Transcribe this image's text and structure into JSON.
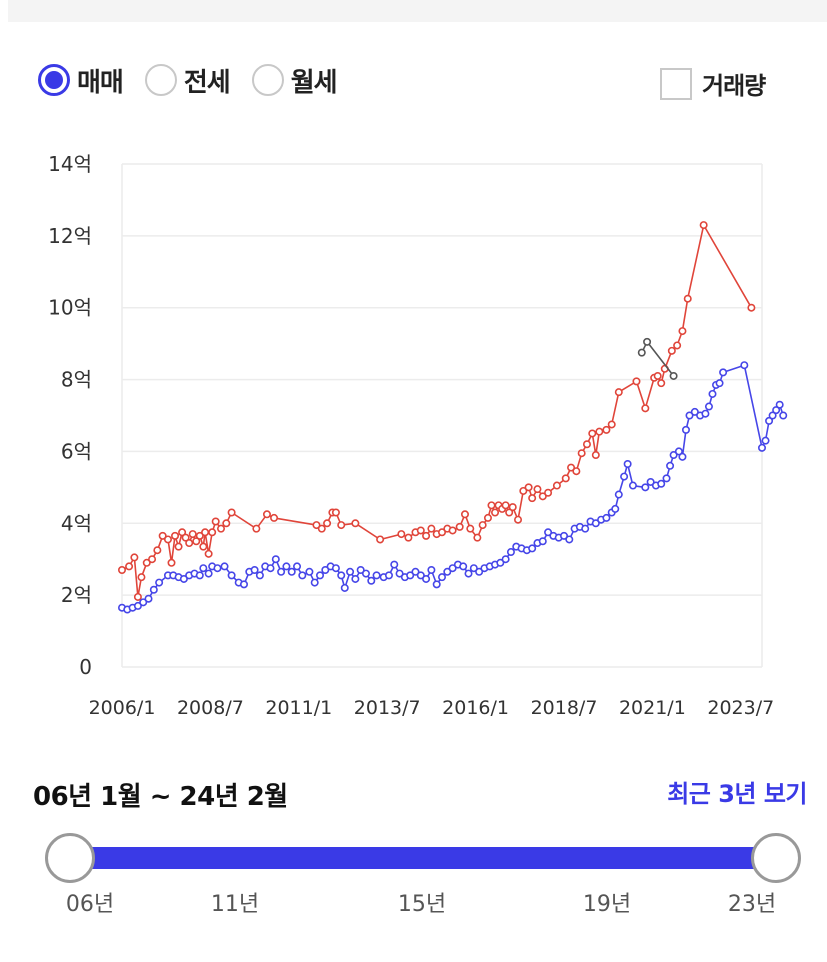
{
  "tabs": {
    "options": [
      {
        "label": "매매",
        "selected": true
      },
      {
        "label": "전세",
        "selected": false
      },
      {
        "label": "월세",
        "selected": false
      }
    ],
    "volume_label": "거래량",
    "volume_checked": false
  },
  "range": {
    "text": "06년 1월 ~ 24년 2월",
    "recent_label": "최근 3년 보기",
    "slider_ticks": [
      "06년",
      "11년",
      "15년",
      "19년",
      "23년"
    ],
    "start_fraction": 0.0,
    "end_fraction": 1.0
  },
  "colors": {
    "accent": "#3a3ae6",
    "red": "#e0453a",
    "blue": "#4646e8",
    "gray": "#555555"
  },
  "chart_data": {
    "type": "line",
    "xlim": [
      2006.0,
      2024.1
    ],
    "ylim": [
      0,
      14
    ],
    "yticks": [
      0,
      2,
      4,
      6,
      8,
      10,
      12,
      14
    ],
    "ytick_labels": [
      "0",
      "2억",
      "4억",
      "6억",
      "8억",
      "10억",
      "12억",
      "14억"
    ],
    "xticks": [
      2006.0,
      2008.5,
      2011.0,
      2013.5,
      2016.0,
      2018.5,
      2021.0,
      2023.5
    ],
    "xtick_labels": [
      "2006/1",
      "2008/7",
      "2011/1",
      "2013/7",
      "2016/1",
      "2018/7",
      "2021/1",
      "2023/7"
    ],
    "grid": true,
    "series": [
      {
        "color": "#e0453a",
        "points": [
          [
            2006.0,
            2.7
          ],
          [
            2006.2,
            2.8
          ],
          [
            2006.35,
            3.05
          ],
          [
            2006.45,
            1.95
          ],
          [
            2006.55,
            2.5
          ],
          [
            2006.7,
            2.9
          ],
          [
            2006.85,
            3.0
          ],
          [
            2007.0,
            3.25
          ],
          [
            2007.15,
            3.65
          ],
          [
            2007.3,
            3.55
          ],
          [
            2007.4,
            2.9
          ],
          [
            2007.5,
            3.65
          ],
          [
            2007.6,
            3.35
          ],
          [
            2007.7,
            3.75
          ],
          [
            2007.8,
            3.6
          ],
          [
            2007.9,
            3.45
          ],
          [
            2008.0,
            3.7
          ],
          [
            2008.1,
            3.5
          ],
          [
            2008.2,
            3.65
          ],
          [
            2008.3,
            3.35
          ],
          [
            2008.35,
            3.75
          ],
          [
            2008.45,
            3.15
          ],
          [
            2008.55,
            3.75
          ],
          [
            2008.65,
            4.05
          ],
          [
            2008.8,
            3.85
          ],
          [
            2008.95,
            4.0
          ],
          [
            2009.1,
            4.3
          ],
          [
            2009.8,
            3.85
          ],
          [
            2010.1,
            4.25
          ],
          [
            2010.3,
            4.15
          ],
          [
            2011.5,
            3.95
          ],
          [
            2011.65,
            3.85
          ],
          [
            2011.8,
            4.0
          ],
          [
            2011.95,
            4.3
          ],
          [
            2012.05,
            4.3
          ],
          [
            2012.2,
            3.95
          ],
          [
            2012.6,
            4.0
          ],
          [
            2013.3,
            3.55
          ],
          [
            2013.9,
            3.7
          ],
          [
            2014.1,
            3.6
          ],
          [
            2014.3,
            3.75
          ],
          [
            2014.45,
            3.8
          ],
          [
            2014.6,
            3.65
          ],
          [
            2014.75,
            3.85
          ],
          [
            2014.9,
            3.7
          ],
          [
            2015.05,
            3.75
          ],
          [
            2015.2,
            3.85
          ],
          [
            2015.35,
            3.8
          ],
          [
            2015.55,
            3.9
          ],
          [
            2015.7,
            4.25
          ],
          [
            2015.85,
            3.85
          ],
          [
            2016.05,
            3.6
          ],
          [
            2016.2,
            3.95
          ],
          [
            2016.35,
            4.15
          ],
          [
            2016.45,
            4.5
          ],
          [
            2016.55,
            4.3
          ],
          [
            2016.65,
            4.5
          ],
          [
            2016.75,
            4.4
          ],
          [
            2016.85,
            4.5
          ],
          [
            2016.95,
            4.3
          ],
          [
            2017.05,
            4.45
          ],
          [
            2017.2,
            4.1
          ],
          [
            2017.35,
            4.9
          ],
          [
            2017.5,
            5.0
          ],
          [
            2017.6,
            4.7
          ],
          [
            2017.75,
            4.95
          ],
          [
            2017.9,
            4.75
          ],
          [
            2018.05,
            4.85
          ],
          [
            2018.3,
            5.05
          ],
          [
            2018.55,
            5.25
          ],
          [
            2018.7,
            5.55
          ],
          [
            2018.85,
            5.45
          ],
          [
            2019.0,
            5.95
          ],
          [
            2019.15,
            6.2
          ],
          [
            2019.3,
            6.5
          ],
          [
            2019.4,
            5.9
          ],
          [
            2019.5,
            6.55
          ],
          [
            2019.7,
            6.6
          ],
          [
            2019.85,
            6.75
          ],
          [
            2020.05,
            7.65
          ],
          [
            2020.55,
            7.95
          ],
          [
            2020.8,
            7.2
          ],
          [
            2021.05,
            8.05
          ],
          [
            2021.15,
            8.1
          ],
          [
            2021.25,
            7.9
          ],
          [
            2021.35,
            8.3
          ],
          [
            2021.55,
            8.8
          ],
          [
            2021.7,
            8.95
          ],
          [
            2021.85,
            9.35
          ],
          [
            2022.0,
            10.25
          ],
          [
            2022.45,
            12.3
          ],
          [
            2023.8,
            10.0
          ]
        ]
      },
      {
        "color": "#4646e8",
        "points": [
          [
            2006.0,
            1.65
          ],
          [
            2006.15,
            1.6
          ],
          [
            2006.3,
            1.65
          ],
          [
            2006.45,
            1.7
          ],
          [
            2006.6,
            1.8
          ],
          [
            2006.75,
            1.9
          ],
          [
            2006.9,
            2.15
          ],
          [
            2007.05,
            2.35
          ],
          [
            2007.3,
            2.55
          ],
          [
            2007.45,
            2.55
          ],
          [
            2007.6,
            2.5
          ],
          [
            2007.75,
            2.45
          ],
          [
            2007.9,
            2.55
          ],
          [
            2008.05,
            2.6
          ],
          [
            2008.2,
            2.55
          ],
          [
            2008.3,
            2.75
          ],
          [
            2008.45,
            2.6
          ],
          [
            2008.55,
            2.8
          ],
          [
            2008.7,
            2.75
          ],
          [
            2008.9,
            2.8
          ],
          [
            2009.1,
            2.55
          ],
          [
            2009.3,
            2.35
          ],
          [
            2009.45,
            2.3
          ],
          [
            2009.6,
            2.65
          ],
          [
            2009.75,
            2.7
          ],
          [
            2009.9,
            2.55
          ],
          [
            2010.05,
            2.8
          ],
          [
            2010.2,
            2.75
          ],
          [
            2010.35,
            3.0
          ],
          [
            2010.5,
            2.65
          ],
          [
            2010.65,
            2.8
          ],
          [
            2010.8,
            2.65
          ],
          [
            2010.95,
            2.8
          ],
          [
            2011.1,
            2.55
          ],
          [
            2011.3,
            2.65
          ],
          [
            2011.45,
            2.35
          ],
          [
            2011.6,
            2.55
          ],
          [
            2011.75,
            2.7
          ],
          [
            2011.9,
            2.8
          ],
          [
            2012.05,
            2.75
          ],
          [
            2012.2,
            2.55
          ],
          [
            2012.3,
            2.2
          ],
          [
            2012.45,
            2.65
          ],
          [
            2012.6,
            2.45
          ],
          [
            2012.75,
            2.7
          ],
          [
            2012.9,
            2.6
          ],
          [
            2013.05,
            2.4
          ],
          [
            2013.2,
            2.55
          ],
          [
            2013.4,
            2.5
          ],
          [
            2013.55,
            2.55
          ],
          [
            2013.7,
            2.85
          ],
          [
            2013.85,
            2.6
          ],
          [
            2014.0,
            2.5
          ],
          [
            2014.15,
            2.55
          ],
          [
            2014.3,
            2.65
          ],
          [
            2014.45,
            2.55
          ],
          [
            2014.6,
            2.45
          ],
          [
            2014.75,
            2.7
          ],
          [
            2014.9,
            2.3
          ],
          [
            2015.05,
            2.5
          ],
          [
            2015.2,
            2.65
          ],
          [
            2015.35,
            2.75
          ],
          [
            2015.5,
            2.85
          ],
          [
            2015.65,
            2.8
          ],
          [
            2015.8,
            2.6
          ],
          [
            2015.95,
            2.75
          ],
          [
            2016.1,
            2.65
          ],
          [
            2016.25,
            2.75
          ],
          [
            2016.4,
            2.8
          ],
          [
            2016.55,
            2.85
          ],
          [
            2016.7,
            2.9
          ],
          [
            2016.85,
            3.0
          ],
          [
            2017.0,
            3.2
          ],
          [
            2017.15,
            3.35
          ],
          [
            2017.3,
            3.3
          ],
          [
            2017.45,
            3.25
          ],
          [
            2017.6,
            3.3
          ],
          [
            2017.75,
            3.45
          ],
          [
            2017.9,
            3.5
          ],
          [
            2018.05,
            3.75
          ],
          [
            2018.2,
            3.65
          ],
          [
            2018.35,
            3.6
          ],
          [
            2018.5,
            3.65
          ],
          [
            2018.65,
            3.55
          ],
          [
            2018.8,
            3.85
          ],
          [
            2018.95,
            3.9
          ],
          [
            2019.1,
            3.85
          ],
          [
            2019.25,
            4.05
          ],
          [
            2019.4,
            4.0
          ],
          [
            2019.55,
            4.1
          ],
          [
            2019.7,
            4.15
          ],
          [
            2019.85,
            4.3
          ],
          [
            2019.95,
            4.4
          ],
          [
            2020.05,
            4.8
          ],
          [
            2020.2,
            5.3
          ],
          [
            2020.3,
            5.65
          ],
          [
            2020.45,
            5.05
          ],
          [
            2020.8,
            5.0
          ],
          [
            2020.95,
            5.15
          ],
          [
            2021.1,
            5.05
          ],
          [
            2021.25,
            5.1
          ],
          [
            2021.4,
            5.25
          ],
          [
            2021.5,
            5.6
          ],
          [
            2021.6,
            5.9
          ],
          [
            2021.75,
            6.0
          ],
          [
            2021.85,
            5.85
          ],
          [
            2021.95,
            6.6
          ],
          [
            2022.05,
            7.0
          ],
          [
            2022.2,
            7.1
          ],
          [
            2022.35,
            7.0
          ],
          [
            2022.5,
            7.05
          ],
          [
            2022.6,
            7.25
          ],
          [
            2022.7,
            7.6
          ],
          [
            2022.8,
            7.85
          ],
          [
            2022.9,
            7.9
          ],
          [
            2023.0,
            8.2
          ],
          [
            2023.6,
            8.4
          ],
          [
            2024.1,
            6.1
          ],
          [
            2024.2,
            6.3
          ],
          [
            2024.3,
            6.85
          ],
          [
            2024.4,
            7.0
          ],
          [
            2024.5,
            7.15
          ],
          [
            2024.6,
            7.3
          ],
          [
            2024.7,
            7.0
          ]
        ]
      },
      {
        "color": "#555555",
        "points": [
          [
            2020.7,
            8.75
          ],
          [
            2020.85,
            9.05
          ],
          [
            2021.6,
            8.1
          ]
        ]
      }
    ]
  }
}
